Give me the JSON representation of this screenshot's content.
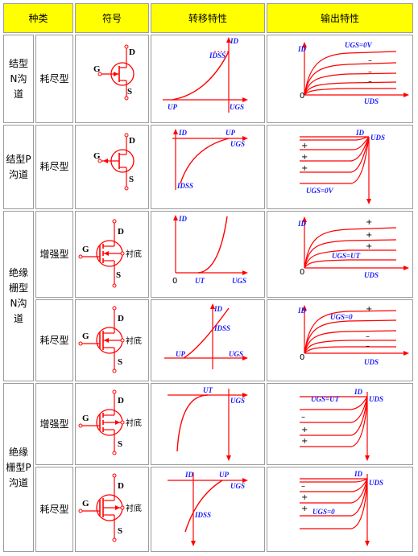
{
  "headers": {
    "type": "种类",
    "symbol": "符号",
    "transfer": "转移特性",
    "output": "输出特性"
  },
  "groups": {
    "jfet_n": "结型N沟道",
    "jfet_p": "结型P沟道",
    "igfet_n": "绝缘栅型N沟道",
    "igfet_p": "绝缘栅型P沟道"
  },
  "modes": {
    "r1": "耗尽型",
    "r2": "耗尽型",
    "r3": "增强型",
    "r4": "耗尽型",
    "r5": "增强型",
    "r6": "耗尽型"
  },
  "pins": {
    "gate": "G",
    "drain": "D",
    "source": "S",
    "substrate": "衬底"
  },
  "labels": {
    "id": "ID",
    "ugs": "UGS",
    "uds": "UDS",
    "up": "UP",
    "ut": "UT",
    "idss": "IDSS",
    "zero": "0",
    "plus": "+",
    "minus": "–",
    "ugs_0v": "UGS=0V",
    "ugs_eq_0v": "UGS=0V",
    "ugs_eq_ut": "UGS=UT",
    "ugs_eq_0": "UGS=0",
    "ugs_eq_ut_p": "UGS=UT",
    "ugs_eq_0_p": "UGS=0"
  },
  "colors": {
    "header_bg": "#ffff00",
    "border": "#9c9c9c",
    "curve": "#ff0000",
    "label": "#1a1aff",
    "text": "#000000"
  }
}
